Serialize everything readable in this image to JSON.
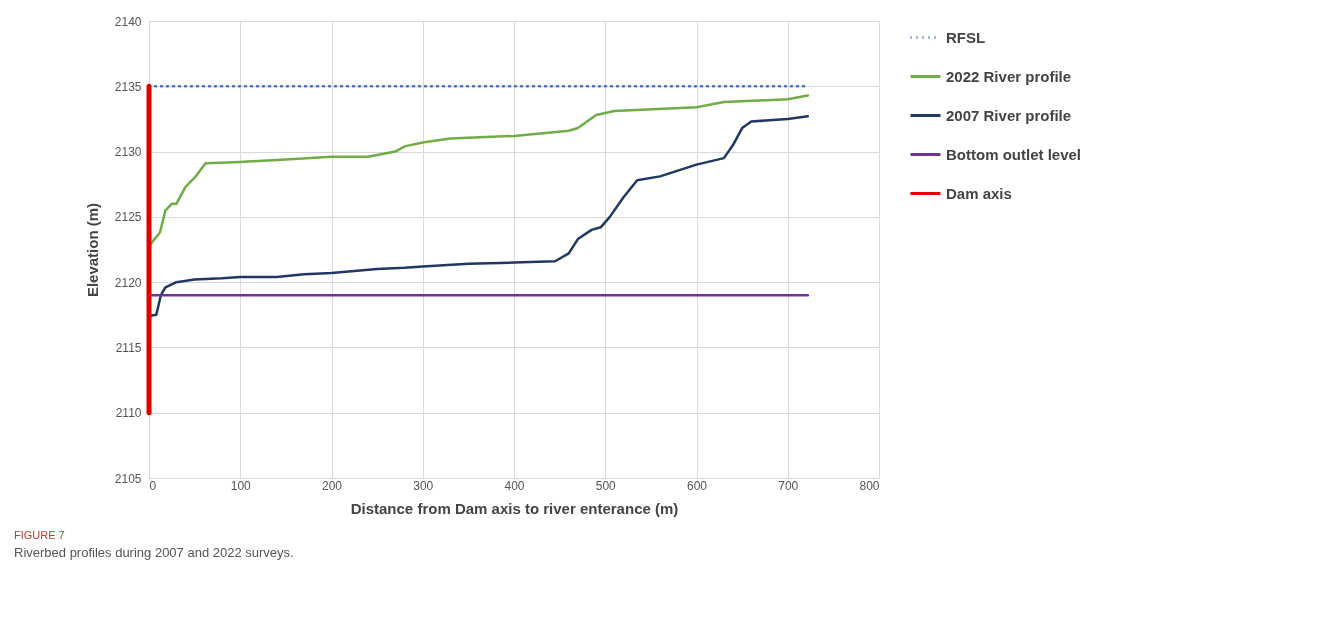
{
  "chart_data": {
    "type": "line",
    "xlabel": "Distance from  Dam axis to river enterance (m)",
    "ylabel": "Elevation (m)",
    "xlim": [
      0,
      800
    ],
    "xticks": [
      0,
      100,
      200,
      300,
      400,
      500,
      600,
      700,
      800
    ],
    "ylim": [
      2105,
      2140
    ],
    "yticks": [
      2105,
      2110,
      2115,
      2120,
      2125,
      2130,
      2135,
      2140
    ],
    "grid": true,
    "legend": "right",
    "annotations": [
      "FIGURE 7",
      "Riverbed profiles during 2007 and 2022 surveys."
    ],
    "series": [
      {
        "name": "RFSL",
        "color": "#4472c4",
        "line_style": "dotted",
        "x": [
          0,
          722
        ],
        "values": [
          2135,
          2135
        ]
      },
      {
        "name": "2022 River profile",
        "color": "#70ad47",
        "x": [
          0,
          5,
          12,
          18,
          25,
          30,
          40,
          50,
          62,
          100,
          150,
          200,
          240,
          270,
          280,
          300,
          330,
          400,
          460,
          470,
          490,
          510,
          600,
          630,
          700,
          722
        ],
        "values": [
          2122.7,
          2123.2,
          2123.8,
          2125.5,
          2126,
          2126,
          2127.3,
          2128,
          2129.1,
          2129.2,
          2129.4,
          2129.6,
          2129.6,
          2130,
          2130.4,
          2130.7,
          2131,
          2131.2,
          2131.6,
          2131.8,
          2132.8,
          2133.1,
          2133.4,
          2133.8,
          2134,
          2134.3
        ]
      },
      {
        "name": "2007 River profile",
        "color": "#1f3864",
        "x": [
          0,
          8,
          13,
          18,
          30,
          50,
          80,
          100,
          140,
          170,
          200,
          250,
          280,
          300,
          350,
          400,
          445,
          460,
          470,
          485,
          495,
          505,
          520,
          535,
          560,
          600,
          630,
          640,
          650,
          660,
          700,
          722
        ],
        "values": [
          2117.4,
          2117.5,
          2119,
          2119.6,
          2120,
          2120.2,
          2120.3,
          2120.4,
          2120.4,
          2120.6,
          2120.7,
          2121,
          2121.1,
          2121.2,
          2121.4,
          2121.5,
          2121.6,
          2122.2,
          2123.3,
          2124,
          2124.2,
          2125,
          2126.5,
          2127.8,
          2128.1,
          2129,
          2129.5,
          2130.5,
          2131.8,
          2132.3,
          2132.5,
          2132.7
        ]
      },
      {
        "name": "Bottom outlet level",
        "color": "#7030a0",
        "x": [
          0,
          722
        ],
        "values": [
          2119,
          2119
        ]
      },
      {
        "name": "Dam axis",
        "color": "#e00000",
        "x": [
          0,
          0
        ],
        "values": [
          2110,
          2135
        ]
      }
    ]
  }
}
